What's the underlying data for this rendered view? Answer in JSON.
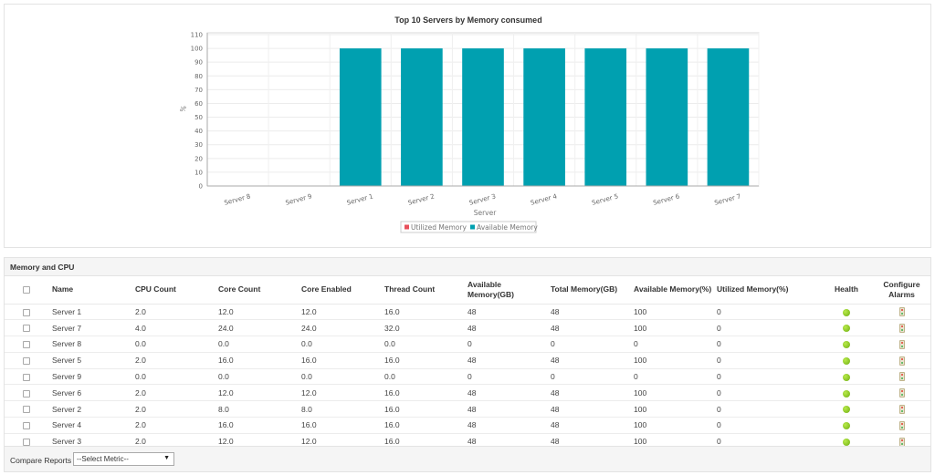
{
  "chart_data": {
    "type": "bar",
    "title": "Top 10 Servers by Memory consumed",
    "xlabel": "Server",
    "ylabel": "%",
    "ylim": [
      0,
      110
    ],
    "yticks": [
      0,
      10,
      20,
      30,
      40,
      50,
      60,
      70,
      80,
      90,
      100,
      110
    ],
    "categories": [
      "Server 8",
      "Server 9",
      "Server 1",
      "Server 2",
      "Server 3",
      "Server 4",
      "Server 5",
      "Server 6",
      "Server 7"
    ],
    "series": [
      {
        "name": "Utilized Memory",
        "color": "#e8505b",
        "values": [
          0,
          0,
          0,
          0,
          0,
          0,
          0,
          0,
          0
        ]
      },
      {
        "name": "Available Memory",
        "color": "#00a0b0",
        "values": [
          0,
          0,
          100,
          100,
          100,
          100,
          100,
          100,
          100
        ]
      }
    ],
    "grid": true,
    "legend": "bottom-center"
  },
  "table": {
    "title": "Memory and CPU",
    "headers": [
      "Name",
      "CPU Count",
      "Core Count",
      "Core Enabled",
      "Thread Count",
      "Available Memory(GB)",
      "Total Memory(GB)",
      "Available Memory(%)",
      "Utilized Memory(%)",
      "Health",
      "Configure Alarms"
    ],
    "rows": [
      [
        "Server 1",
        "2.0",
        "12.0",
        "12.0",
        "16.0",
        "48",
        "48",
        "100",
        "0"
      ],
      [
        "Server 7",
        "4.0",
        "24.0",
        "24.0",
        "32.0",
        "48",
        "48",
        "100",
        "0"
      ],
      [
        "Server 8",
        "0.0",
        "0.0",
        "0.0",
        "0.0",
        "0",
        "0",
        "0",
        "0"
      ],
      [
        "Server 5",
        "2.0",
        "16.0",
        "16.0",
        "16.0",
        "48",
        "48",
        "100",
        "0"
      ],
      [
        "Server 9",
        "0.0",
        "0.0",
        "0.0",
        "0.0",
        "0",
        "0",
        "0",
        "0"
      ],
      [
        "Server 6",
        "2.0",
        "12.0",
        "12.0",
        "16.0",
        "48",
        "48",
        "100",
        "0"
      ],
      [
        "Server 2",
        "2.0",
        "8.0",
        "8.0",
        "16.0",
        "48",
        "48",
        "100",
        "0"
      ],
      [
        "Server 4",
        "2.0",
        "16.0",
        "16.0",
        "16.0",
        "48",
        "48",
        "100",
        "0"
      ],
      [
        "Server 3",
        "2.0",
        "12.0",
        "12.0",
        "16.0",
        "48",
        "48",
        "100",
        "0"
      ]
    ],
    "health_icon": "green-status-dot-icon",
    "alarm_icon": "traffic-light-alarm-icon"
  },
  "footer": {
    "compare_label": "Compare Reports",
    "select_value": "--Select Metric--"
  }
}
